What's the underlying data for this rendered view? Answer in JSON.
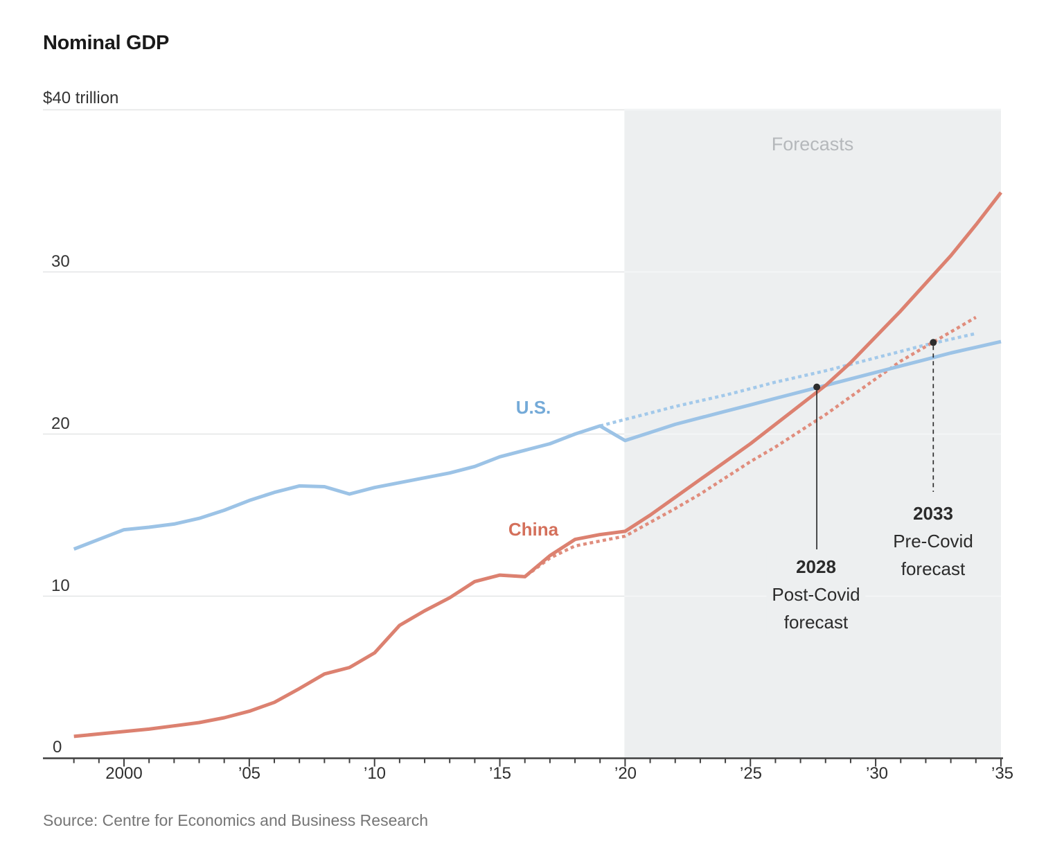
{
  "title": "Nominal GDP",
  "source": "Source: Centre for Economics and Business Research",
  "labels": {
    "forecasts": "Forecasts",
    "us": "U.S.",
    "china": "China",
    "ann2028": {
      "year": "2028",
      "line1": "Post-Covid",
      "line2": "forecast"
    },
    "ann2033": {
      "year": "2033",
      "line1": "Pre-Covid",
      "line2": "forecast"
    }
  },
  "y_axis": {
    "top_label": "$40 trillion",
    "ticks": [
      "30",
      "20",
      "10",
      "0"
    ]
  },
  "x_axis": {
    "tick_labels": [
      "2000",
      "’05",
      "’10",
      "’15",
      "’20",
      "’25",
      "’30",
      "’35"
    ]
  },
  "colors": {
    "us_line": "#9cc3e6",
    "us_forecast_line": "#a3c9ea",
    "china_line": "#dc8170",
    "china_forecast_line": "#e08d7d",
    "us_label": "#74aad8",
    "china_label": "#d4705b",
    "forecast_bg": "#edeff0",
    "forecast_text": "#b5b8bb",
    "annotation": "#2d2d2d",
    "axis": "#3f3f3f",
    "gridline": "#e3e5e6",
    "gridline_in_forecast": "#f6f7f8"
  },
  "chart_data": {
    "type": "line",
    "title": "Nominal GDP",
    "unit": "trillion USD",
    "ylabel": "$40 trillion",
    "ylim": [
      0,
      40
    ],
    "xlim": [
      1998,
      2035
    ],
    "grid": "horizontal",
    "forecast_region_start": 2020,
    "forecast_region_label": "Forecasts",
    "series": [
      {
        "name": "U.S.",
        "style": "solid",
        "color": "#9cc3e6",
        "start_year": 1998,
        "values": [
          12.9,
          13.5,
          14.1,
          14.25,
          14.45,
          14.8,
          15.3,
          15.9,
          16.4,
          16.8,
          16.75,
          16.3,
          16.7,
          17.0,
          17.3,
          17.6,
          18.0,
          18.6,
          19.0,
          19.4,
          20.0,
          20.5,
          19.6,
          20.1,
          20.6,
          21.0,
          21.4,
          21.8,
          22.2,
          22.6,
          23.0,
          23.4,
          23.8,
          24.2,
          24.6,
          25.0,
          25.35,
          25.7
        ]
      },
      {
        "name": "China",
        "style": "solid",
        "color": "#dc8170",
        "start_year": 1998,
        "values": [
          1.35,
          1.5,
          1.65,
          1.8,
          2.0,
          2.2,
          2.5,
          2.9,
          3.45,
          4.3,
          5.2,
          5.6,
          6.5,
          8.2,
          9.1,
          9.9,
          10.9,
          11.3,
          11.2,
          12.5,
          13.5,
          13.8,
          14.0,
          15.0,
          16.1,
          17.2,
          18.3,
          19.4,
          20.6,
          21.8,
          23.0,
          24.4,
          26.0,
          27.6,
          29.3,
          31.0,
          32.9,
          34.9
        ]
      },
      {
        "name": "U.S. pre-Covid forecast",
        "style": "dotted",
        "color": "#a3c9ea",
        "start_year": 2019,
        "values": [
          20.5,
          20.9,
          21.3,
          21.7,
          22.05,
          22.4,
          22.8,
          23.2,
          23.55,
          23.9,
          24.3,
          24.7,
          25.1,
          25.5,
          25.85,
          26.2
        ]
      },
      {
        "name": "China pre-Covid forecast",
        "style": "dotted",
        "color": "#e08d7d",
        "start_year": 2014,
        "values": [
          10.9,
          11.3,
          11.2,
          12.35,
          13.1,
          13.4,
          13.7,
          14.55,
          15.4,
          16.3,
          17.3,
          18.3,
          19.2,
          20.2,
          21.2,
          22.3,
          23.4,
          24.5,
          25.4,
          26.3,
          27.2
        ]
      }
    ],
    "annotations": [
      {
        "year": 2027.65,
        "value": 22.9,
        "label": "2028 Post-Covid forecast",
        "leader": "solid"
      },
      {
        "year": 2032.3,
        "value": 25.65,
        "label": "2033 Pre-Covid forecast",
        "leader": "dashed"
      }
    ]
  }
}
